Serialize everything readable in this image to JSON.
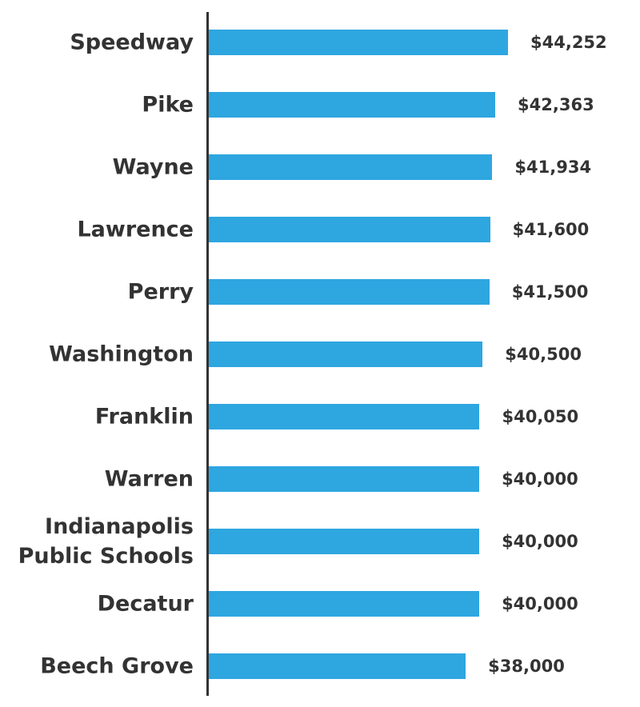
{
  "chart_data": {
    "type": "bar",
    "orientation": "horizontal",
    "color": "#2ea6e0",
    "categories": [
      "Speedway",
      "Pike",
      "Wayne",
      "Lawrence",
      "Perry",
      "Washington",
      "Franklin",
      "Warren",
      "Indianapolis Public Schools",
      "Decatur",
      "Beech Grove"
    ],
    "values": [
      44252,
      42363,
      41934,
      41600,
      41500,
      40500,
      40050,
      40000,
      40000,
      40000,
      38000
    ],
    "value_labels": [
      "$44,252",
      "$42,363",
      "$41,934",
      "$41,600",
      "$41,500",
      "$40,500",
      "$40,050",
      "$40,000",
      "$40,000",
      "$40,000",
      "$38,000"
    ]
  }
}
